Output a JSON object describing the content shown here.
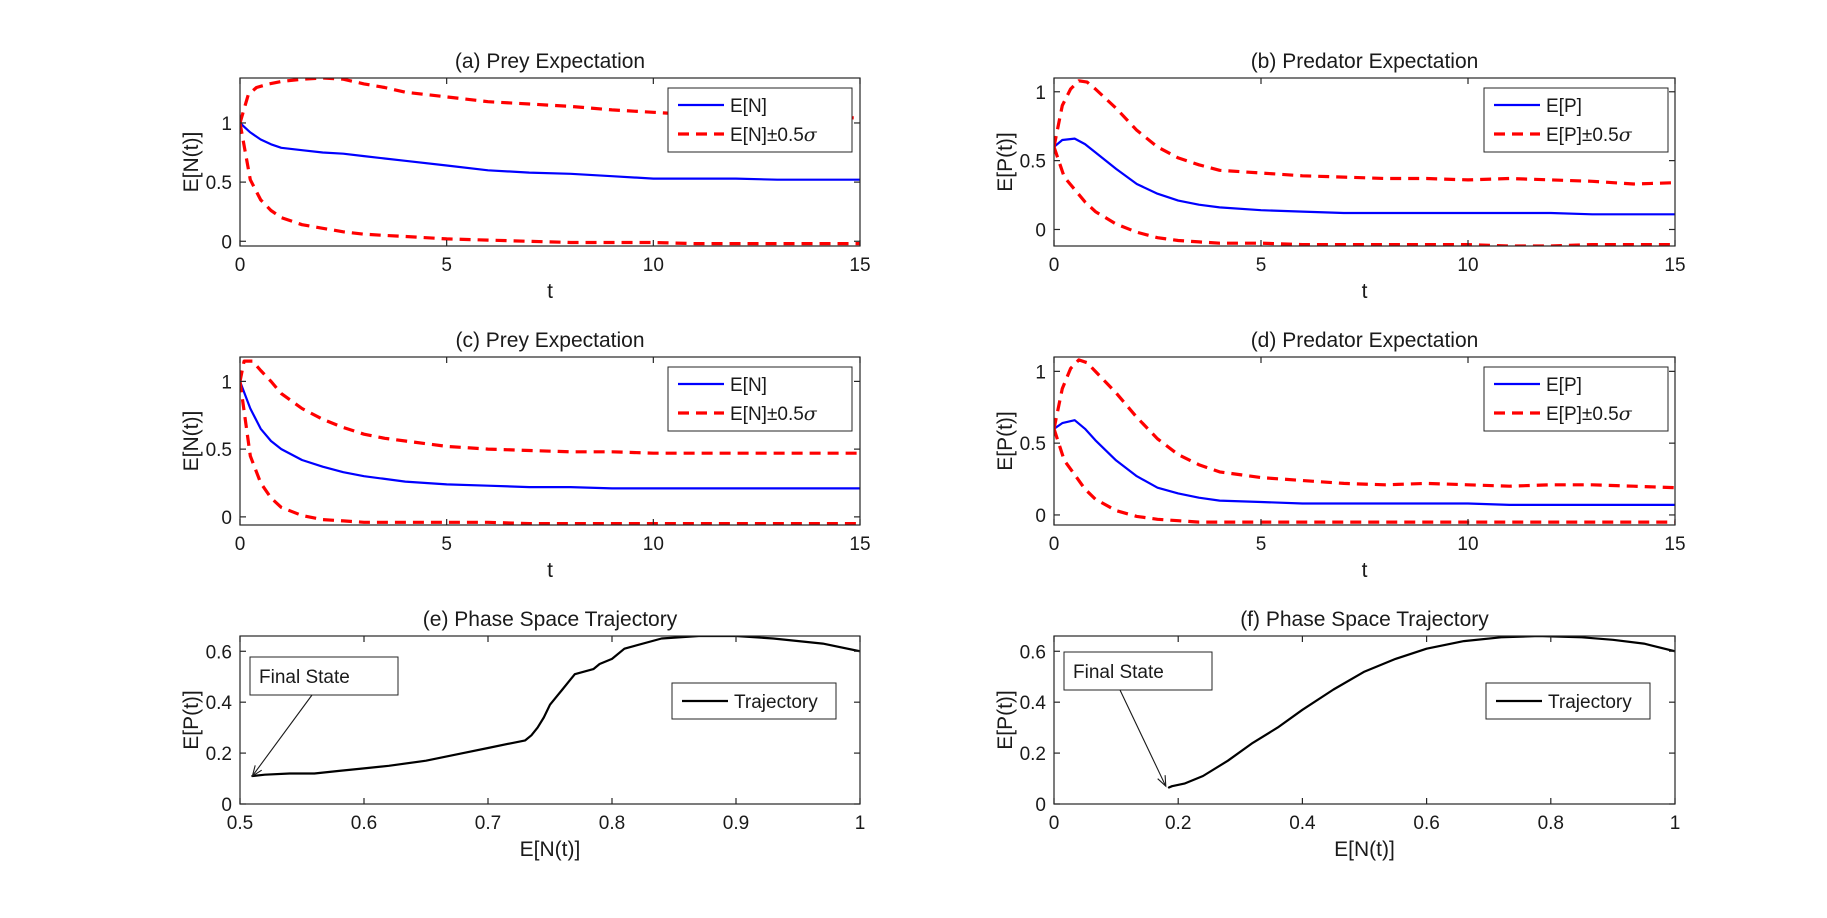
{
  "chart_data": [
    {
      "id": "a",
      "type": "line",
      "title": "(a) Prey Expectation",
      "xlabel": "t",
      "ylabel": "E[N(t)]",
      "xlim": [
        0,
        15
      ],
      "ylim": [
        -0.04,
        1.38
      ],
      "xticks": [
        0,
        5,
        10,
        15
      ],
      "yticks": [
        0,
        0.5,
        1
      ],
      "ytick_labels": [
        "0",
        "0.5",
        "1"
      ],
      "legend": "top-right",
      "series": [
        {
          "name": "E[N]",
          "color": "#0000ff",
          "style": "solid",
          "x": [
            0,
            0.25,
            0.5,
            0.75,
            1,
            1.5,
            2,
            2.5,
            3,
            3.5,
            4,
            5,
            6,
            7,
            8,
            9,
            10,
            11,
            12,
            13,
            14,
            15
          ],
          "y": [
            1.0,
            0.92,
            0.86,
            0.82,
            0.79,
            0.77,
            0.75,
            0.74,
            0.72,
            0.7,
            0.68,
            0.64,
            0.6,
            0.58,
            0.57,
            0.55,
            0.53,
            0.53,
            0.53,
            0.52,
            0.52,
            0.52
          ]
        },
        {
          "name": "E[N]+0.5σ",
          "legend_label": "E[N]±0.5σ",
          "color": "#ff0000",
          "style": "dashed",
          "x": [
            0,
            0.2,
            0.4,
            0.7,
            1,
            1.5,
            2,
            2.5,
            3,
            3.5,
            4,
            5,
            6,
            7,
            8,
            9,
            10,
            11,
            12,
            13,
            14,
            15
          ],
          "y": [
            1.0,
            1.24,
            1.3,
            1.33,
            1.35,
            1.37,
            1.38,
            1.37,
            1.33,
            1.3,
            1.26,
            1.22,
            1.18,
            1.16,
            1.14,
            1.11,
            1.09,
            1.07,
            1.07,
            1.06,
            1.06,
            1.04
          ]
        },
        {
          "name": "E[N]-0.5σ",
          "color": "#ff0000",
          "style": "dashed",
          "x": [
            0,
            0.25,
            0.5,
            0.75,
            1,
            1.5,
            2,
            2.5,
            3,
            3.5,
            4,
            5,
            6,
            7,
            8,
            9,
            10,
            11,
            12,
            13,
            14,
            15
          ],
          "y": [
            1.0,
            0.52,
            0.35,
            0.26,
            0.2,
            0.14,
            0.11,
            0.08,
            0.06,
            0.05,
            0.04,
            0.02,
            0.01,
            0.0,
            -0.01,
            -0.01,
            -0.01,
            -0.02,
            -0.02,
            -0.02,
            -0.02,
            -0.02
          ]
        }
      ]
    },
    {
      "id": "b",
      "type": "line",
      "title": "(b) Predator Expectation",
      "xlabel": "t",
      "ylabel": "E[P(t)]",
      "xlim": [
        0,
        15
      ],
      "ylim": [
        -0.12,
        1.1
      ],
      "xticks": [
        0,
        5,
        10,
        15
      ],
      "yticks": [
        0,
        0.5,
        1
      ],
      "ytick_labels": [
        "0",
        "0.5",
        "1"
      ],
      "legend": "top-right",
      "series": [
        {
          "name": "E[P]",
          "color": "#0000ff",
          "style": "solid",
          "x": [
            0,
            0.2,
            0.5,
            0.75,
            1,
            1.5,
            2,
            2.5,
            3,
            3.5,
            4,
            5,
            6,
            7,
            8,
            9,
            10,
            11,
            12,
            13,
            14,
            15
          ],
          "y": [
            0.6,
            0.65,
            0.66,
            0.62,
            0.56,
            0.44,
            0.33,
            0.26,
            0.21,
            0.18,
            0.16,
            0.14,
            0.13,
            0.12,
            0.12,
            0.12,
            0.12,
            0.12,
            0.12,
            0.11,
            0.11,
            0.11
          ]
        },
        {
          "name": "E[P]+0.5σ",
          "legend_label": "E[P]±0.5σ",
          "color": "#ff0000",
          "style": "dashed",
          "x": [
            0,
            0.2,
            0.4,
            0.6,
            0.8,
            1,
            1.5,
            2,
            2.5,
            3,
            3.5,
            4,
            5,
            6,
            7,
            8,
            9,
            10,
            11,
            12,
            13,
            14,
            15
          ],
          "y": [
            0.6,
            0.9,
            1.02,
            1.08,
            1.07,
            1.02,
            0.88,
            0.72,
            0.6,
            0.52,
            0.47,
            0.43,
            0.41,
            0.39,
            0.38,
            0.37,
            0.37,
            0.36,
            0.37,
            0.36,
            0.35,
            0.33,
            0.34
          ]
        },
        {
          "name": "E[P]-0.5σ",
          "color": "#ff0000",
          "style": "dashed",
          "x": [
            0,
            0.25,
            0.5,
            0.75,
            1,
            1.5,
            2,
            2.5,
            3,
            3.5,
            4,
            5,
            6,
            7,
            8,
            9,
            10,
            11,
            12,
            13,
            14,
            15
          ],
          "y": [
            0.6,
            0.38,
            0.29,
            0.2,
            0.13,
            0.04,
            -0.02,
            -0.06,
            -0.08,
            -0.09,
            -0.1,
            -0.1,
            -0.11,
            -0.11,
            -0.11,
            -0.11,
            -0.11,
            -0.12,
            -0.12,
            -0.11,
            -0.11,
            -0.11
          ]
        }
      ]
    },
    {
      "id": "c",
      "type": "line",
      "title": "(c) Prey Expectation",
      "xlabel": "t",
      "ylabel": "E[N(t)]",
      "xlim": [
        0,
        15
      ],
      "ylim": [
        -0.06,
        1.18
      ],
      "xticks": [
        0,
        5,
        10,
        15
      ],
      "yticks": [
        0,
        0.5,
        1
      ],
      "ytick_labels": [
        "0",
        "0.5",
        "1"
      ],
      "legend": "top-right",
      "series": [
        {
          "name": "E[N]",
          "color": "#0000ff",
          "style": "solid",
          "x": [
            0,
            0.25,
            0.5,
            0.75,
            1,
            1.5,
            2,
            2.5,
            3,
            3.5,
            4,
            5,
            6,
            7,
            8,
            9,
            10,
            11,
            12,
            13,
            14,
            15
          ],
          "y": [
            1.0,
            0.8,
            0.65,
            0.56,
            0.5,
            0.42,
            0.37,
            0.33,
            0.3,
            0.28,
            0.26,
            0.24,
            0.23,
            0.22,
            0.22,
            0.21,
            0.21,
            0.21,
            0.21,
            0.21,
            0.21,
            0.21
          ]
        },
        {
          "name": "E[N]+0.5σ",
          "legend_label": "E[N]±0.5σ",
          "color": "#ff0000",
          "style": "dashed",
          "x": [
            0,
            0.1,
            0.3,
            0.5,
            0.75,
            1,
            1.5,
            2,
            2.5,
            3,
            3.5,
            4,
            5,
            6,
            7,
            8,
            9,
            10,
            11,
            12,
            13,
            14,
            15
          ],
          "y": [
            1.0,
            1.15,
            1.15,
            1.08,
            1.0,
            0.91,
            0.8,
            0.72,
            0.66,
            0.61,
            0.58,
            0.56,
            0.52,
            0.5,
            0.49,
            0.48,
            0.48,
            0.47,
            0.47,
            0.47,
            0.47,
            0.47,
            0.47
          ]
        },
        {
          "name": "E[N]-0.5σ",
          "color": "#ff0000",
          "style": "dashed",
          "x": [
            0,
            0.25,
            0.5,
            0.75,
            1,
            1.5,
            2,
            2.5,
            3,
            3.5,
            4,
            5,
            6,
            7,
            8,
            9,
            10,
            11,
            12,
            13,
            14,
            15
          ],
          "y": [
            1.0,
            0.45,
            0.25,
            0.14,
            0.07,
            0.01,
            -0.02,
            -0.03,
            -0.04,
            -0.04,
            -0.04,
            -0.04,
            -0.04,
            -0.05,
            -0.05,
            -0.05,
            -0.05,
            -0.05,
            -0.05,
            -0.05,
            -0.05,
            -0.05
          ]
        }
      ]
    },
    {
      "id": "d",
      "type": "line",
      "title": "(d) Predator Expectation",
      "xlabel": "t",
      "ylabel": "E[P(t)]",
      "xlim": [
        0,
        15
      ],
      "ylim": [
        -0.07,
        1.1
      ],
      "xticks": [
        0,
        5,
        10,
        15
      ],
      "yticks": [
        0,
        0.5,
        1
      ],
      "ytick_labels": [
        "0",
        "0.5",
        "1"
      ],
      "legend": "top-right",
      "series": [
        {
          "name": "E[P]",
          "color": "#0000ff",
          "style": "solid",
          "x": [
            0,
            0.2,
            0.5,
            0.75,
            1,
            1.5,
            2,
            2.5,
            3,
            3.5,
            4,
            5,
            6,
            7,
            8,
            9,
            10,
            11,
            12,
            13,
            14,
            15
          ],
          "y": [
            0.6,
            0.64,
            0.66,
            0.6,
            0.52,
            0.38,
            0.27,
            0.19,
            0.15,
            0.12,
            0.1,
            0.09,
            0.08,
            0.08,
            0.08,
            0.08,
            0.08,
            0.07,
            0.07,
            0.07,
            0.07,
            0.07
          ]
        },
        {
          "name": "E[P]+0.5σ",
          "legend_label": "E[P]±0.5σ",
          "color": "#ff0000",
          "style": "dashed",
          "x": [
            0,
            0.2,
            0.4,
            0.6,
            0.8,
            1,
            1.5,
            2,
            2.5,
            3,
            3.5,
            4,
            5,
            6,
            7,
            8,
            9,
            10,
            11,
            12,
            13,
            14,
            15
          ],
          "y": [
            0.6,
            0.88,
            1.02,
            1.08,
            1.06,
            1.0,
            0.85,
            0.68,
            0.53,
            0.42,
            0.35,
            0.3,
            0.26,
            0.24,
            0.22,
            0.21,
            0.22,
            0.21,
            0.2,
            0.21,
            0.21,
            0.2,
            0.19
          ]
        },
        {
          "name": "E[P]-0.5σ",
          "color": "#ff0000",
          "style": "dashed",
          "x": [
            0,
            0.25,
            0.5,
            0.75,
            1,
            1.5,
            2,
            2.5,
            3,
            3.5,
            4,
            5,
            6,
            7,
            8,
            9,
            10,
            11,
            12,
            13,
            14,
            15
          ],
          "y": [
            0.6,
            0.38,
            0.28,
            0.18,
            0.11,
            0.03,
            -0.01,
            -0.03,
            -0.04,
            -0.05,
            -0.05,
            -0.05,
            -0.05,
            -0.05,
            -0.05,
            -0.05,
            -0.05,
            -0.05,
            -0.05,
            -0.05,
            -0.05,
            -0.05
          ]
        }
      ]
    },
    {
      "id": "e",
      "type": "line",
      "title": "(e) Phase Space Trajectory",
      "xlabel": "E[N(t)]",
      "ylabel": "E[P(t)]",
      "xlim": [
        0.5,
        1
      ],
      "ylim": [
        0,
        0.66
      ],
      "xticks": [
        0.5,
        0.6,
        0.7,
        0.8,
        0.9,
        1
      ],
      "xtick_labels": [
        "0.5",
        "0.6",
        "0.7",
        "0.8",
        "0.9",
        "1"
      ],
      "yticks": [
        0,
        0.2,
        0.4,
        0.6
      ],
      "ytick_labels": [
        "0",
        "0.2",
        "0.4",
        "0.6"
      ],
      "legend": "right",
      "annotation": {
        "text": "Final State",
        "target": [
          0.51,
          0.11
        ]
      },
      "series": [
        {
          "name": "Trajectory",
          "color": "#000000",
          "style": "solid",
          "x": [
            1.0,
            0.97,
            0.93,
            0.9,
            0.87,
            0.84,
            0.81,
            0.8,
            0.79,
            0.785,
            0.77,
            0.765,
            0.76,
            0.755,
            0.75,
            0.745,
            0.74,
            0.735,
            0.73,
            0.72,
            0.7,
            0.68,
            0.65,
            0.62,
            0.6,
            0.58,
            0.56,
            0.54,
            0.52,
            0.51
          ],
          "y": [
            0.6,
            0.63,
            0.65,
            0.66,
            0.66,
            0.65,
            0.61,
            0.57,
            0.55,
            0.53,
            0.51,
            0.48,
            0.45,
            0.42,
            0.39,
            0.34,
            0.3,
            0.27,
            0.25,
            0.24,
            0.22,
            0.2,
            0.17,
            0.15,
            0.14,
            0.13,
            0.12,
            0.12,
            0.115,
            0.11
          ]
        }
      ]
    },
    {
      "id": "f",
      "type": "line",
      "title": "(f) Phase Space Trajectory",
      "xlabel": "E[N(t)]",
      "ylabel": "E[P(t)]",
      "xlim": [
        0,
        1
      ],
      "ylim": [
        0,
        0.66
      ],
      "xticks": [
        0,
        0.2,
        0.4,
        0.6,
        0.8,
        1
      ],
      "xtick_labels": [
        "0",
        "0.2",
        "0.4",
        "0.6",
        "0.8",
        "1"
      ],
      "yticks": [
        0,
        0.2,
        0.4,
        0.6
      ],
      "ytick_labels": [
        "0",
        "0.2",
        "0.4",
        "0.6"
      ],
      "legend": "right",
      "annotation": {
        "text": "Final State",
        "target": [
          0.18,
          0.07
        ]
      },
      "series": [
        {
          "name": "Trajectory",
          "color": "#000000",
          "style": "solid",
          "x": [
            1.0,
            0.95,
            0.9,
            0.85,
            0.78,
            0.72,
            0.66,
            0.6,
            0.55,
            0.5,
            0.45,
            0.4,
            0.36,
            0.32,
            0.28,
            0.24,
            0.21,
            0.19,
            0.185
          ],
          "y": [
            0.6,
            0.63,
            0.645,
            0.655,
            0.66,
            0.655,
            0.64,
            0.61,
            0.57,
            0.52,
            0.45,
            0.37,
            0.3,
            0.24,
            0.17,
            0.11,
            0.08,
            0.07,
            0.065
          ]
        }
      ]
    }
  ]
}
